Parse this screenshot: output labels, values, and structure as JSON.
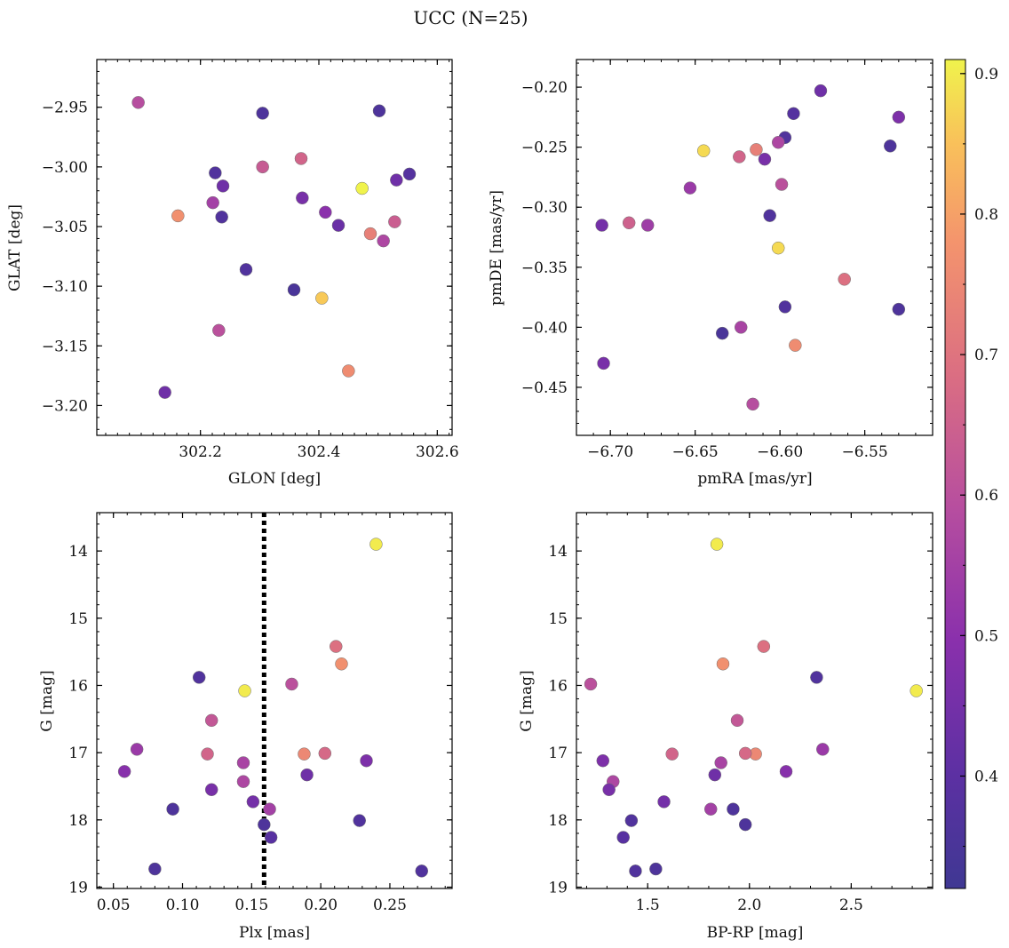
{
  "figure": {
    "title": "UCC (N=25)"
  },
  "colors": {
    "background": "#ffffff",
    "frame": "#000000",
    "colormap": "plasma",
    "marker_edge": "#707070",
    "parallax_line": "#000000"
  },
  "colorbar": {
    "min": 0.32,
    "max": 0.91,
    "ticks": [
      "0.4",
      "0.5",
      "0.6",
      "0.7",
      "0.8",
      "0.9"
    ],
    "tick_values": [
      0.4,
      0.5,
      0.6,
      0.7,
      0.8,
      0.9
    ]
  },
  "chart_data": [
    {
      "type": "scatter",
      "panel": "top-left",
      "xlabel": "GLON [deg]",
      "ylabel": "GLAT [deg]",
      "xlim": [
        302.025,
        302.625
      ],
      "ylim": [
        -3.225,
        -2.91
      ],
      "y_inverted": false,
      "xticks": [
        "302.2",
        "302.4",
        "302.6"
      ],
      "xtick_values": [
        302.2,
        302.4,
        302.6
      ],
      "yticks": [
        "−2.95",
        "−3.00",
        "−3.05",
        "−3.10",
        "−3.15",
        "−3.20"
      ],
      "ytick_values": [
        -2.95,
        -3.0,
        -3.05,
        -3.1,
        -3.15,
        -3.2
      ],
      "points": [
        {
          "x": 302.095,
          "y": -2.946,
          "c": 0.59
        },
        {
          "x": 302.305,
          "y": -2.955,
          "c": 0.36
        },
        {
          "x": 302.502,
          "y": -2.953,
          "c": 0.36
        },
        {
          "x": 302.225,
          "y": -3.005,
          "c": 0.37
        },
        {
          "x": 302.305,
          "y": -3.0,
          "c": 0.63
        },
        {
          "x": 302.37,
          "y": -2.993,
          "c": 0.66
        },
        {
          "x": 302.473,
          "y": -3.018,
          "c": 0.91
        },
        {
          "x": 302.553,
          "y": -3.006,
          "c": 0.38
        },
        {
          "x": 302.531,
          "y": -3.011,
          "c": 0.44
        },
        {
          "x": 302.238,
          "y": -3.016,
          "c": 0.44
        },
        {
          "x": 302.221,
          "y": -3.03,
          "c": 0.55
        },
        {
          "x": 302.372,
          "y": -3.026,
          "c": 0.46
        },
        {
          "x": 302.411,
          "y": -3.038,
          "c": 0.5
        },
        {
          "x": 302.162,
          "y": -3.041,
          "c": 0.77
        },
        {
          "x": 302.236,
          "y": -3.042,
          "c": 0.37
        },
        {
          "x": 302.433,
          "y": -3.049,
          "c": 0.43
        },
        {
          "x": 302.528,
          "y": -3.046,
          "c": 0.64
        },
        {
          "x": 302.487,
          "y": -3.056,
          "c": 0.73
        },
        {
          "x": 302.509,
          "y": -3.062,
          "c": 0.57
        },
        {
          "x": 302.277,
          "y": -3.086,
          "c": 0.37
        },
        {
          "x": 302.358,
          "y": -3.103,
          "c": 0.35
        },
        {
          "x": 302.405,
          "y": -3.11,
          "c": 0.86
        },
        {
          "x": 302.231,
          "y": -3.137,
          "c": 0.6
        },
        {
          "x": 302.45,
          "y": -3.171,
          "c": 0.76
        },
        {
          "x": 302.14,
          "y": -3.189,
          "c": 0.44
        }
      ]
    },
    {
      "type": "scatter",
      "panel": "top-right",
      "xlabel": "pmRA [mas/yr]",
      "ylabel": "pmDE [mas/yr]",
      "xlim": [
        -6.72,
        -6.51
      ],
      "ylim": [
        -0.49,
        -0.177
      ],
      "y_inverted": false,
      "xticks": [
        "−6.70",
        "−6.65",
        "−6.60",
        "−6.55"
      ],
      "xtick_values": [
        -6.7,
        -6.65,
        -6.6,
        -6.55
      ],
      "yticks": [
        "−0.20",
        "−0.25",
        "−0.30",
        "−0.35",
        "−0.40",
        "−0.45"
      ],
      "ytick_values": [
        -0.2,
        -0.25,
        -0.3,
        -0.35,
        -0.4,
        -0.45
      ],
      "points": [
        {
          "x": -6.576,
          "y": -0.203,
          "c": 0.44
        },
        {
          "x": -6.592,
          "y": -0.222,
          "c": 0.38
        },
        {
          "x": -6.53,
          "y": -0.225,
          "c": 0.47
        },
        {
          "x": -6.597,
          "y": -0.242,
          "c": 0.37
        },
        {
          "x": -6.601,
          "y": -0.246,
          "c": 0.57
        },
        {
          "x": -6.535,
          "y": -0.249,
          "c": 0.36
        },
        {
          "x": -6.645,
          "y": -0.253,
          "c": 0.88
        },
        {
          "x": -6.614,
          "y": -0.252,
          "c": 0.73
        },
        {
          "x": -6.624,
          "y": -0.258,
          "c": 0.66
        },
        {
          "x": -6.609,
          "y": -0.26,
          "c": 0.46
        },
        {
          "x": -6.599,
          "y": -0.281,
          "c": 0.6
        },
        {
          "x": -6.653,
          "y": -0.284,
          "c": 0.53
        },
        {
          "x": -6.606,
          "y": -0.307,
          "c": 0.37
        },
        {
          "x": -6.705,
          "y": -0.315,
          "c": 0.45
        },
        {
          "x": -6.689,
          "y": -0.313,
          "c": 0.65
        },
        {
          "x": -6.678,
          "y": -0.315,
          "c": 0.54
        },
        {
          "x": -6.601,
          "y": -0.334,
          "c": 0.88
        },
        {
          "x": -6.562,
          "y": -0.36,
          "c": 0.69
        },
        {
          "x": -6.597,
          "y": -0.383,
          "c": 0.37
        },
        {
          "x": -6.53,
          "y": -0.385,
          "c": 0.36
        },
        {
          "x": -6.623,
          "y": -0.4,
          "c": 0.56
        },
        {
          "x": -6.634,
          "y": -0.405,
          "c": 0.35
        },
        {
          "x": -6.591,
          "y": -0.415,
          "c": 0.76
        },
        {
          "x": -6.704,
          "y": -0.43,
          "c": 0.46
        },
        {
          "x": -6.616,
          "y": -0.464,
          "c": 0.59
        }
      ]
    },
    {
      "type": "scatter",
      "panel": "bottom-left",
      "xlabel": "Plx [mas]",
      "ylabel": "G [mag]",
      "xlim": [
        0.038,
        0.295
      ],
      "ylim": [
        13.43,
        19.02
      ],
      "y_inverted": true,
      "xticks": [
        "0.05",
        "0.10",
        "0.15",
        "0.20",
        "0.25"
      ],
      "xtick_values": [
        0.05,
        0.1,
        0.15,
        0.2,
        0.25
      ],
      "yticks": [
        "14",
        "15",
        "16",
        "17",
        "18",
        "19"
      ],
      "ytick_values": [
        14,
        15,
        16,
        17,
        18,
        19
      ],
      "vline_x": 0.159,
      "points": [
        {
          "x": 0.24,
          "y": 13.9,
          "c": 0.9
        },
        {
          "x": 0.211,
          "y": 15.42,
          "c": 0.69
        },
        {
          "x": 0.215,
          "y": 15.68,
          "c": 0.77
        },
        {
          "x": 0.112,
          "y": 15.88,
          "c": 0.37
        },
        {
          "x": 0.145,
          "y": 16.08,
          "c": 0.9
        },
        {
          "x": 0.179,
          "y": 15.98,
          "c": 0.6
        },
        {
          "x": 0.121,
          "y": 16.52,
          "c": 0.62
        },
        {
          "x": 0.067,
          "y": 16.95,
          "c": 0.53
        },
        {
          "x": 0.118,
          "y": 17.02,
          "c": 0.66
        },
        {
          "x": 0.188,
          "y": 17.02,
          "c": 0.75
        },
        {
          "x": 0.203,
          "y": 17.01,
          "c": 0.67
        },
        {
          "x": 0.233,
          "y": 17.12,
          "c": 0.47
        },
        {
          "x": 0.144,
          "y": 17.15,
          "c": 0.56
        },
        {
          "x": 0.058,
          "y": 17.28,
          "c": 0.49
        },
        {
          "x": 0.19,
          "y": 17.33,
          "c": 0.44
        },
        {
          "x": 0.144,
          "y": 17.43,
          "c": 0.57
        },
        {
          "x": 0.121,
          "y": 17.55,
          "c": 0.46
        },
        {
          "x": 0.151,
          "y": 17.73,
          "c": 0.45
        },
        {
          "x": 0.093,
          "y": 17.84,
          "c": 0.36
        },
        {
          "x": 0.163,
          "y": 17.84,
          "c": 0.55
        },
        {
          "x": 0.228,
          "y": 18.01,
          "c": 0.37
        },
        {
          "x": 0.159,
          "y": 18.07,
          "c": 0.36
        },
        {
          "x": 0.164,
          "y": 18.26,
          "c": 0.39
        },
        {
          "x": 0.08,
          "y": 18.73,
          "c": 0.36
        },
        {
          "x": 0.273,
          "y": 18.76,
          "c": 0.37
        }
      ]
    },
    {
      "type": "scatter",
      "panel": "bottom-right",
      "xlabel": "BP-RP [mag]",
      "ylabel": "G [mag]",
      "xlim": [
        1.15,
        2.9
      ],
      "ylim": [
        13.43,
        19.02
      ],
      "y_inverted": true,
      "xticks": [
        "1.5",
        "2.0",
        "2.5"
      ],
      "xtick_values": [
        1.5,
        2.0,
        2.5
      ],
      "yticks": [
        "14",
        "15",
        "16",
        "17",
        "18",
        "19"
      ],
      "ytick_values": [
        14,
        15,
        16,
        17,
        18,
        19
      ],
      "points": [
        {
          "x": 1.84,
          "y": 13.9,
          "c": 0.9
        },
        {
          "x": 2.07,
          "y": 15.42,
          "c": 0.69
        },
        {
          "x": 1.87,
          "y": 15.68,
          "c": 0.77
        },
        {
          "x": 2.33,
          "y": 15.88,
          "c": 0.37
        },
        {
          "x": 2.82,
          "y": 16.08,
          "c": 0.9
        },
        {
          "x": 1.22,
          "y": 15.98,
          "c": 0.6
        },
        {
          "x": 1.94,
          "y": 16.52,
          "c": 0.62
        },
        {
          "x": 2.36,
          "y": 16.95,
          "c": 0.53
        },
        {
          "x": 1.62,
          "y": 17.02,
          "c": 0.66
        },
        {
          "x": 2.03,
          "y": 17.02,
          "c": 0.75
        },
        {
          "x": 1.98,
          "y": 17.01,
          "c": 0.67
        },
        {
          "x": 1.28,
          "y": 17.12,
          "c": 0.47
        },
        {
          "x": 1.86,
          "y": 17.15,
          "c": 0.56
        },
        {
          "x": 2.18,
          "y": 17.28,
          "c": 0.49
        },
        {
          "x": 1.83,
          "y": 17.33,
          "c": 0.44
        },
        {
          "x": 1.33,
          "y": 17.43,
          "c": 0.57
        },
        {
          "x": 1.31,
          "y": 17.55,
          "c": 0.46
        },
        {
          "x": 1.58,
          "y": 17.73,
          "c": 0.45
        },
        {
          "x": 1.92,
          "y": 17.84,
          "c": 0.36
        },
        {
          "x": 1.81,
          "y": 17.84,
          "c": 0.55
        },
        {
          "x": 1.42,
          "y": 18.01,
          "c": 0.37
        },
        {
          "x": 1.98,
          "y": 18.07,
          "c": 0.36
        },
        {
          "x": 1.38,
          "y": 18.26,
          "c": 0.39
        },
        {
          "x": 1.54,
          "y": 18.73,
          "c": 0.36
        },
        {
          "x": 1.44,
          "y": 18.76,
          "c": 0.37
        }
      ]
    }
  ]
}
